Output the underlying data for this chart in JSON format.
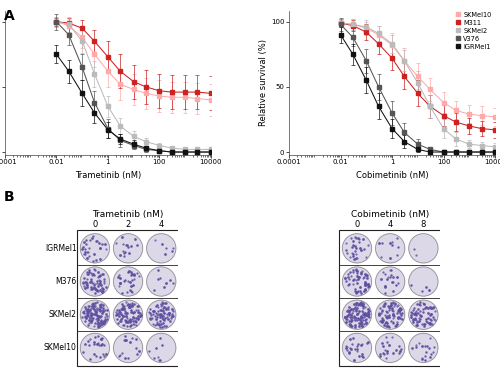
{
  "panel_A_label": "A",
  "panel_B_label": "B",
  "legend_labels": [
    "SKMel10",
    "M311",
    "SKMel2",
    "V376",
    "IGRMel1"
  ],
  "trametinib_xlabel": "Trametinib (nM)",
  "cobimetinib_xlabel": "Cobimetinib (nM)",
  "ylabel": "Relative survival (%)",
  "bg_color": "#ffffff",
  "line_colors": [
    "#ffaaaa",
    "#cc2222",
    "#bbbbbb",
    "#555555",
    "#111111"
  ],
  "marker_styles": [
    "s",
    "s",
    "s",
    "s",
    "s"
  ],
  "trametinib": {
    "x_doses": [
      0.01,
      0.03,
      0.1,
      0.3,
      1,
      3,
      10,
      30,
      100,
      300,
      1000,
      3000,
      10000
    ],
    "SKMel10": {
      "y": [
        100,
        97,
        88,
        75,
        62,
        52,
        48,
        45,
        43,
        42,
        42,
        41,
        40
      ],
      "err": [
        4,
        5,
        8,
        10,
        12,
        12,
        12,
        12,
        12,
        12,
        12,
        12,
        12
      ]
    },
    "M311": {
      "y": [
        100,
        99,
        95,
        85,
        73,
        62,
        54,
        50,
        47,
        46,
        46,
        46,
        45
      ],
      "err": [
        3,
        4,
        6,
        9,
        12,
        13,
        13,
        13,
        13,
        13,
        13,
        13,
        13
      ]
    },
    "SKMel2": {
      "y": [
        100,
        98,
        85,
        60,
        35,
        20,
        12,
        8,
        5,
        3,
        2,
        2,
        2
      ],
      "err": [
        4,
        6,
        9,
        10,
        8,
        6,
        4,
        3,
        2,
        2,
        2,
        2,
        2
      ]
    },
    "V376": {
      "y": [
        100,
        90,
        65,
        38,
        18,
        9,
        5,
        2,
        1,
        0,
        0,
        0,
        0
      ],
      "err": [
        6,
        8,
        10,
        9,
        7,
        5,
        3,
        2,
        1,
        1,
        1,
        1,
        1
      ]
    },
    "IGRMel1": {
      "y": [
        75,
        62,
        45,
        30,
        17,
        10,
        6,
        3,
        1,
        0,
        0,
        0,
        0
      ],
      "err": [
        7,
        9,
        10,
        8,
        6,
        4,
        3,
        2,
        1,
        1,
        1,
        1,
        1
      ]
    }
  },
  "cobimetinib": {
    "x_doses": [
      0.01,
      0.03,
      0.1,
      0.3,
      1,
      3,
      10,
      30,
      100,
      300,
      1000,
      3000,
      10000
    ],
    "SKMel10": {
      "y": [
        99,
        98,
        95,
        90,
        82,
        70,
        58,
        48,
        38,
        32,
        29,
        28,
        27
      ],
      "err": [
        3,
        4,
        5,
        7,
        9,
        10,
        10,
        9,
        8,
        7,
        7,
        7,
        7
      ]
    },
    "M311": {
      "y": [
        99,
        97,
        92,
        83,
        72,
        58,
        45,
        35,
        28,
        23,
        20,
        18,
        17
      ],
      "err": [
        3,
        4,
        6,
        8,
        9,
        10,
        10,
        9,
        8,
        7,
        6,
        6,
        6
      ]
    },
    "SKMel2": {
      "y": [
        99,
        98,
        96,
        91,
        83,
        70,
        53,
        35,
        18,
        10,
        6,
        5,
        4
      ],
      "err": [
        3,
        4,
        5,
        6,
        7,
        8,
        9,
        9,
        7,
        5,
        3,
        3,
        3
      ]
    },
    "V376": {
      "y": [
        98,
        88,
        70,
        50,
        30,
        15,
        6,
        2,
        0,
        0,
        0,
        0,
        0
      ],
      "err": [
        5,
        7,
        9,
        10,
        9,
        7,
        4,
        2,
        1,
        1,
        1,
        1,
        1
      ]
    },
    "IGRMel1": {
      "y": [
        90,
        75,
        55,
        35,
        18,
        8,
        2,
        0,
        0,
        0,
        0,
        0,
        0
      ],
      "err": [
        6,
        8,
        10,
        10,
        7,
        5,
        2,
        1,
        1,
        1,
        1,
        1,
        1
      ]
    }
  },
  "colony_labels_row": [
    "IGRMel1",
    "M376",
    "SKMel2",
    "SKMel10"
  ],
  "colony_trametinib_doses": [
    "0",
    "2",
    "4"
  ],
  "colony_cobimetinib_doses": [
    "0",
    "4",
    "8"
  ],
  "colony_density_trametinib": {
    "IGRMel1": [
      30,
      15,
      6
    ],
    "M376": [
      70,
      30,
      8
    ],
    "SKMel2": [
      120,
      100,
      80
    ],
    "SKMel10": [
      25,
      15,
      8
    ]
  },
  "colony_density_cobimetinib": {
    "IGRMel1": [
      30,
      10,
      2
    ],
    "M376": [
      60,
      20,
      4
    ],
    "SKMel2": [
      120,
      90,
      70
    ],
    "SKMel10": [
      25,
      20,
      18
    ]
  },
  "plate_bg": "#ddd8e8",
  "plate_edge": "#888888",
  "spot_color": "#6050a0",
  "spot_size_min": 1.0,
  "spot_size_max": 2.2
}
